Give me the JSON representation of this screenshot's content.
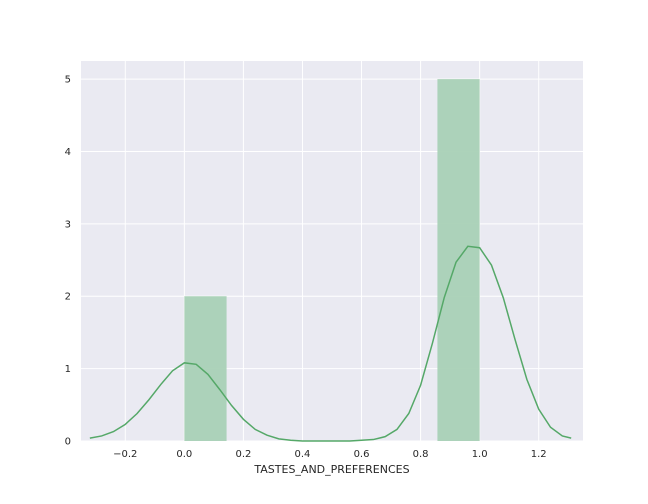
{
  "chart_data": {
    "type": "bar",
    "xlabel": "TASTES_AND_PREFERENCES",
    "ylabel": "",
    "xlim": [
      -0.35,
      1.35
    ],
    "ylim": [
      0,
      5.25
    ],
    "x_ticks": [
      -0.2,
      0.0,
      0.2,
      0.4,
      0.6,
      0.8,
      1.0,
      1.2
    ],
    "x_tick_labels": [
      "−0.2",
      "0.0",
      "0.2",
      "0.4",
      "0.6",
      "0.8",
      "1.0",
      "1.2"
    ],
    "y_ticks": [
      0,
      1,
      2,
      3,
      4,
      5
    ],
    "y_tick_labels": [
      "0",
      "1",
      "2",
      "3",
      "4",
      "5"
    ],
    "grid": true,
    "histogram": {
      "bins": [
        {
          "x0": 0.0,
          "x1": 0.143,
          "value": 2
        },
        {
          "x0": 0.857,
          "x1": 1.0,
          "value": 5
        }
      ],
      "color": "#a9d1b6"
    },
    "kde": {
      "color": "#55a868",
      "x": [
        -0.32,
        -0.28,
        -0.24,
        -0.2,
        -0.16,
        -0.12,
        -0.08,
        -0.04,
        0.0,
        0.04,
        0.08,
        0.12,
        0.16,
        0.2,
        0.24,
        0.28,
        0.32,
        0.36,
        0.4,
        0.44,
        0.48,
        0.52,
        0.56,
        0.6,
        0.64,
        0.68,
        0.72,
        0.76,
        0.8,
        0.84,
        0.88,
        0.92,
        0.96,
        1.0,
        1.04,
        1.08,
        1.12,
        1.16,
        1.2,
        1.24,
        1.28,
        1.31
      ],
      "y": [
        0.04,
        0.07,
        0.13,
        0.23,
        0.38,
        0.57,
        0.78,
        0.97,
        1.08,
        1.06,
        0.92,
        0.71,
        0.49,
        0.3,
        0.16,
        0.08,
        0.03,
        0.01,
        0.0,
        0.0,
        0.0,
        0.0,
        0.0,
        0.01,
        0.02,
        0.06,
        0.16,
        0.38,
        0.77,
        1.35,
        1.98,
        2.47,
        2.69,
        2.67,
        2.43,
        1.98,
        1.4,
        0.85,
        0.44,
        0.19,
        0.07,
        0.04
      ]
    }
  },
  "colors": {
    "plot_background": "#eaeaf2",
    "grid": "#ffffff"
  }
}
